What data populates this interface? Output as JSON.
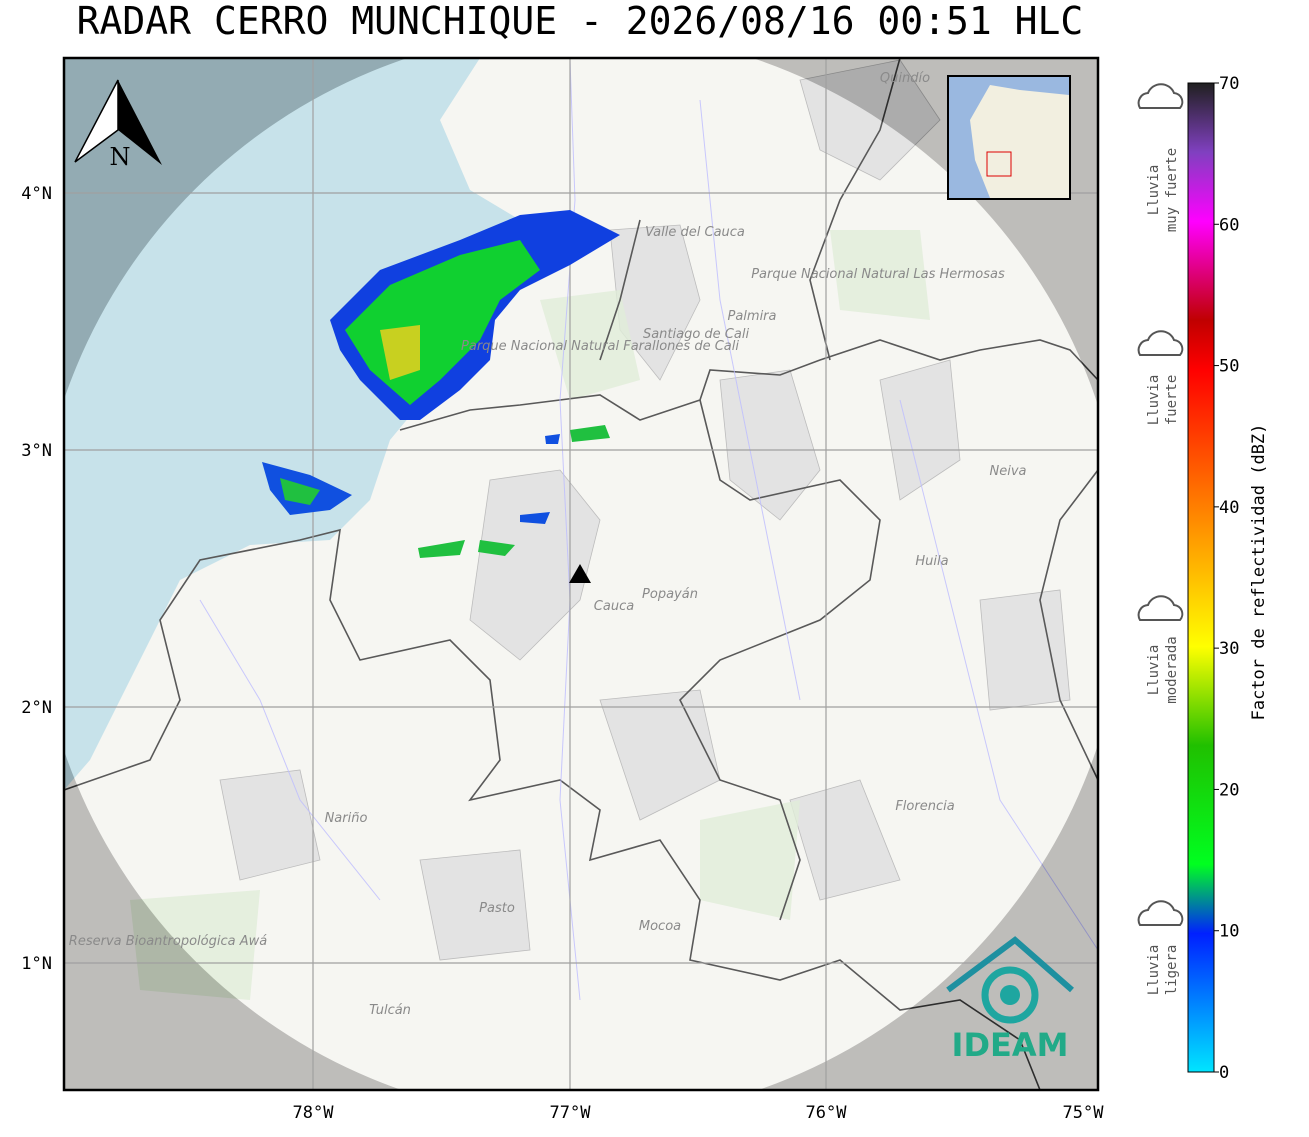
{
  "title": "RADAR CERRO MUNCHIQUE - 2026/08/16 00:51 HLC",
  "north": "N",
  "lon_ticks": [
    "78°W",
    "77°W",
    "76°W",
    "75°W"
  ],
  "lat_ticks": [
    "4°N",
    "3°N",
    "2°N",
    "1°N"
  ],
  "colorbar": {
    "label": "Factor de reflectividad (dBZ)",
    "ticks": [
      0,
      10,
      20,
      30,
      40,
      50,
      60,
      70
    ]
  },
  "rain_levels": [
    {
      "line1": "Lluvia",
      "line2": "muy fuerte"
    },
    {
      "line1": "Lluvia",
      "line2": "fuerte"
    },
    {
      "line1": "Lluvia",
      "line2": "moderada"
    },
    {
      "line1": "Lluvia",
      "line2": "ligera"
    }
  ],
  "places": [
    "Quindío",
    "Valle del Cauca",
    "Parque Nacional Natural Las Hermosas",
    "Parque Nacional Natural Farallones de Cali",
    "Santiago de Cali",
    "Palmira",
    "Neiva",
    "Huila",
    "Cauca",
    "Popayán",
    "Nariño",
    "Florencia",
    "Pasto",
    "Mocoa",
    "Tulcán",
    "Reserva Bioantropológica Awá"
  ],
  "logo": "IDEAM"
}
